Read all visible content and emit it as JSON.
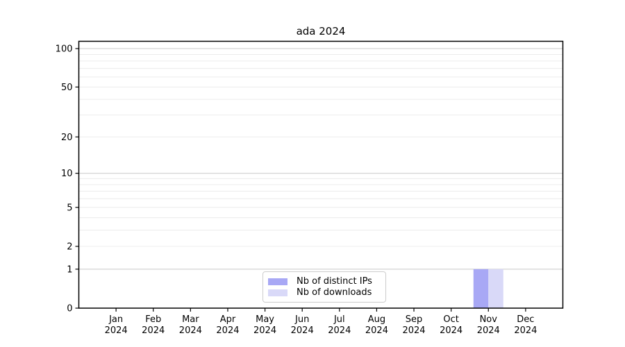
{
  "chart_data": {
    "type": "bar",
    "title": "ada 2024",
    "categories": [
      "Jan 2024",
      "Feb 2024",
      "Mar 2024",
      "Apr 2024",
      "May 2024",
      "Jun 2024",
      "Jul 2024",
      "Aug 2024",
      "Sep 2024",
      "Oct 2024",
      "Nov 2024",
      "Dec 2024"
    ],
    "series": [
      {
        "name": "Nb of distinct IPs",
        "color": "#a8a8f5",
        "values": [
          0,
          0,
          0,
          0,
          0,
          0,
          0,
          0,
          0,
          0,
          1,
          0
        ]
      },
      {
        "name": "Nb of downloads",
        "color": "#d9d9f8",
        "values": [
          0,
          0,
          0,
          0,
          0,
          0,
          0,
          0,
          0,
          0,
          1,
          0
        ]
      }
    ],
    "yticks": [
      0,
      1,
      2,
      5,
      10,
      20,
      50,
      100
    ],
    "grid_major": [
      1,
      10,
      100
    ],
    "grid_minor": [
      2,
      3,
      4,
      5,
      6,
      7,
      8,
      9,
      20,
      30,
      40,
      50,
      60,
      70,
      80,
      90
    ],
    "scale": "log1p",
    "ylim": [
      0,
      114
    ],
    "xlabel": "",
    "ylabel": "",
    "grid": true,
    "legend_position": "bottom-center"
  }
}
